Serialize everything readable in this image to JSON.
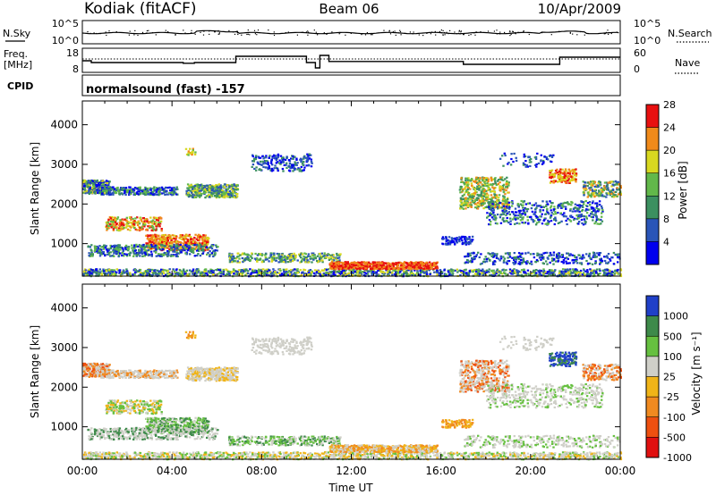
{
  "header": {
    "station": "Kodiak (fitACF)",
    "beam": "Beam 06",
    "date": "10/Apr/2009"
  },
  "summary": {
    "nsky_label": "N.Sky",
    "nsky_ticks": [
      "10^5",
      "10^0"
    ],
    "nsearch_label": "N.Search",
    "nsearch_ticks": [
      "10^5",
      "10^0"
    ],
    "freq_label": "Freq.",
    "freq_unit": "[MHz]",
    "freq_ticks": [
      "18",
      "8"
    ],
    "nave_label": "Nave",
    "nave_ticks": [
      "60",
      "0"
    ],
    "cpid_label": "CPID",
    "cpid_text": "normalsound (fast) -157"
  },
  "chart_data": [
    {
      "type": "heatmap",
      "name": "power",
      "ylabel": "Slant Range [km]",
      "xlabel": "",
      "ylim": [
        180,
        4600
      ],
      "yticks": [
        "1000",
        "2000",
        "3000",
        "4000"
      ],
      "colorbar_label": "Power [dB]",
      "colorbar_ticks": [
        "4",
        "8",
        "12",
        "16",
        "20",
        "24",
        "28"
      ],
      "colors": [
        "#0000ee",
        "#2a55b8",
        "#3c9060",
        "#62b84a",
        "#d8d820",
        "#f08a1a",
        "#e81010"
      ]
    },
    {
      "type": "heatmap",
      "name": "velocity",
      "ylabel": "Slant Range [km]",
      "xlabel": "Time UT",
      "ylim": [
        180,
        4600
      ],
      "yticks": [
        "1000",
        "2000",
        "3000",
        "4000"
      ],
      "xticks": [
        "00:00",
        "04:00",
        "08:00",
        "12:00",
        "16:00",
        "20:00",
        "00:00"
      ],
      "colorbar_label": "Velocity [m s⁻¹]",
      "colorbar_ticks": [
        "1000",
        "500",
        "100",
        "25",
        "-25",
        "-100",
        "-500",
        "-1000"
      ],
      "colors": [
        "#2040c8",
        "#3e8a4a",
        "#66c040",
        "#cfcfc8",
        "#f0b418",
        "#f08a20",
        "#ee5010",
        "#e01010"
      ]
    }
  ]
}
